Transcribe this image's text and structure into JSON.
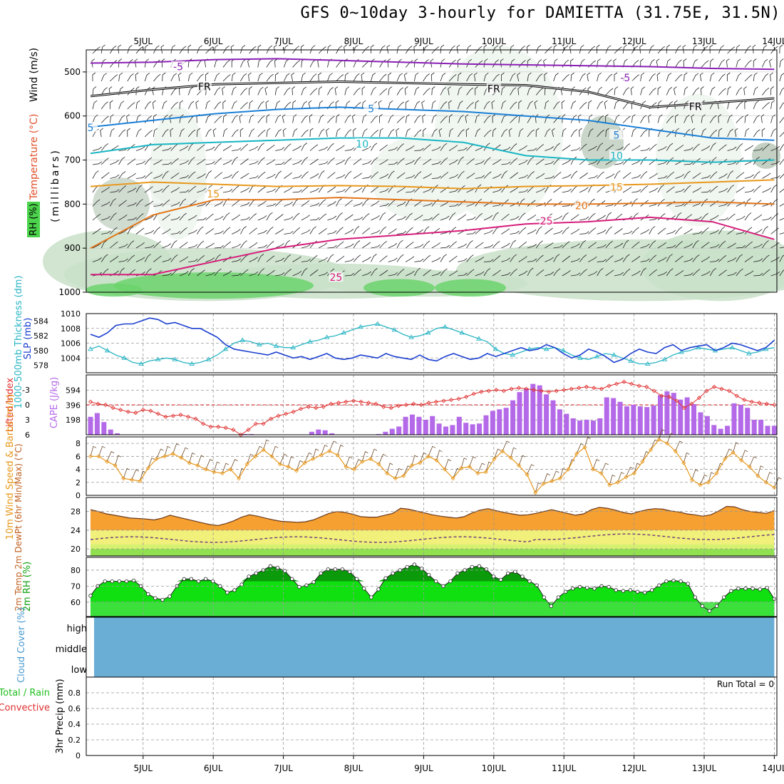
{
  "title": "GFS 0~10day 3-hourly for DAMIETTA (31.75E, 31.5N)",
  "date_labels": [
    "5JUL",
    "6JUL",
    "7JUL",
    "8JUL",
    "9JUL",
    "10JUL",
    "11JUL",
    "12JUL",
    "13JUL",
    "14JUL"
  ],
  "colors": {
    "purple": "#8a1fb5",
    "black": "#000000",
    "blue": "#1a7fd6",
    "cyan": "#18b6c4",
    "orange": "#e8981c",
    "darkorange": "#e2761a",
    "magenta": "#d61c7a",
    "slp": "#1b3fd0",
    "thickness": "#2ab5c4",
    "li": "#e03030",
    "cape": "#b46ae8",
    "wind10": "#e8981c",
    "temp": "#f5a030",
    "dewband": "#f0f07a",
    "rh": "#10e010"
  },
  "chart_data": [
    {
      "type": "contour",
      "name": "upper_air",
      "legend_labels": {
        "wind": "Wind (m/s)",
        "temperature": "Temperature (°C)",
        "rh": "RH (%)"
      },
      "ylabel": "(millibars)",
      "y_ticks": [
        500,
        600,
        700,
        800,
        900,
        1000
      ],
      "ylim": [
        450,
        1000
      ],
      "isotherms": [
        {
          "label": "-5",
          "color_key": "purple",
          "pressure": [
            480,
            478,
            472,
            470,
            474,
            478,
            482,
            484,
            486,
            488,
            492,
            494
          ]
        },
        {
          "label": "FR",
          "color_key": "black",
          "pressure": [
            555,
            540,
            528,
            525,
            522,
            525,
            528,
            530,
            545,
            580,
            570,
            560
          ]
        },
        {
          "label": "5",
          "color_key": "blue",
          "pressure": [
            625,
            610,
            595,
            585,
            580,
            585,
            590,
            600,
            610,
            630,
            650,
            655
          ]
        },
        {
          "label": "10",
          "color_key": "cyan",
          "pressure": [
            685,
            665,
            660,
            655,
            650,
            650,
            660,
            690,
            700,
            700,
            705,
            700
          ]
        },
        {
          "label": "15",
          "color_key": "orange",
          "pressure": [
            760,
            750,
            755,
            760,
            758,
            760,
            765,
            760,
            758,
            755,
            750,
            745
          ]
        },
        {
          "label": "20",
          "color_key": "darkorange",
          "pressure": [
            900,
            825,
            790,
            790,
            785,
            790,
            795,
            800,
            800,
            798,
            795,
            800
          ]
        },
        {
          "label": "25",
          "color_key": "magenta",
          "pressure": [
            960,
            960,
            930,
            900,
            880,
            870,
            860,
            845,
            840,
            830,
            840,
            880
          ]
        }
      ],
      "contour_labels": [
        {
          "text": "-5",
          "x": "5 Jul 12Z",
          "p": 490
        },
        {
          "text": "-5",
          "x": "11 Jul 21Z",
          "p": 515
        },
        {
          "text": "FR",
          "x": "5 Jul 21Z",
          "p": 535
        },
        {
          "text": "FR",
          "x": "10 Jul 00Z",
          "p": 540
        },
        {
          "text": "FR",
          "x": "12 Jul 21Z",
          "p": 580
        },
        {
          "text": "5",
          "x": "4 Jul 06Z",
          "p": 628
        },
        {
          "text": "5",
          "x": "8 Jul 06Z",
          "p": 585
        },
        {
          "text": "5",
          "x": "11 Jul 18Z",
          "p": 645
        },
        {
          "text": "10",
          "x": "8 Jul 03Z",
          "p": 665
        },
        {
          "text": "10",
          "x": "11 Jul 18Z",
          "p": 692
        },
        {
          "text": "15",
          "x": "6 Jul 00Z",
          "p": 778
        },
        {
          "text": "15",
          "x": "11 Jul 18Z",
          "p": 763
        },
        {
          "text": "20",
          "x": "11 Jul 06Z",
          "p": 805
        },
        {
          "text": "25",
          "x": "10 Jul 18Z",
          "p": 840
        },
        {
          "text": "25",
          "x": "7 Jul 18Z",
          "p": 968
        }
      ]
    },
    {
      "type": "line",
      "name": "slp_thickness",
      "left_label": "1000-500mb Thickness (dm)",
      "right_label": "SLP (mb)",
      "left_ticks": [
        578,
        580,
        582,
        584
      ],
      "right_ticks": [
        1004,
        1006,
        1008,
        1010
      ],
      "slp_ylim": [
        1002,
        1010
      ],
      "thick_ylim": [
        577,
        585
      ],
      "series": [
        {
          "name": "SLP",
          "color_key": "slp",
          "values": [
            1007.2,
            1006.8,
            1007.4,
            1008.4,
            1008.6,
            1008.6,
            1009.0,
            1009.4,
            1009.2,
            1008.6,
            1008.8,
            1008.4,
            1008.0,
            1008.0,
            1007.4,
            1006.8,
            1005.8,
            1005.2,
            1005.0,
            1004.8,
            1004.6,
            1004.4,
            1004.8,
            1004.4,
            1004.0,
            1004.2,
            1003.8,
            1004.2,
            1004.6,
            1004.0,
            1003.8,
            1004.0,
            1004.4,
            1004.2,
            1004.0,
            1004.6,
            1004.2,
            1004.0,
            1003.8,
            1004.4,
            1003.8,
            1003.6,
            1004.2,
            1004.6,
            1004.2,
            1003.8,
            1004.0,
            1004.6,
            1004.2,
            1004.6,
            1005.0,
            1005.4,
            1005.0,
            1005.2,
            1005.8,
            1005.4,
            1004.6,
            1004.0,
            1004.4,
            1005.2,
            1004.8,
            1004.2,
            1003.4,
            1003.8,
            1004.6,
            1005.2,
            1004.8,
            1004.6,
            1005.4,
            1005.8,
            1005.0,
            1005.4,
            1005.6,
            1005.8,
            1005.0,
            1005.4,
            1006.0,
            1005.8,
            1005.4,
            1005.0,
            1005.4,
            1006.4
          ]
        },
        {
          "name": "Thickness",
          "color_key": "thickness",
          "values": [
            580.2,
            580.6,
            580.0,
            579.4,
            579.0,
            578.4,
            578.2,
            578.6,
            578.8,
            579.0,
            578.8,
            578.4,
            578.2,
            578.4,
            578.8,
            579.4,
            580.2,
            581.0,
            581.4,
            581.2,
            580.8,
            581.0,
            580.6,
            580.4,
            580.4,
            580.8,
            581.2,
            581.4,
            581.8,
            582.0,
            582.4,
            582.8,
            583.2,
            583.4,
            583.6,
            583.2,
            582.8,
            582.2,
            581.8,
            582.0,
            582.4,
            583.0,
            583.2,
            582.8,
            582.4,
            582.0,
            581.6,
            581.2,
            580.2,
            579.6,
            579.4,
            579.8,
            580.2,
            580.4,
            580.2,
            580.4,
            580.0,
            579.4,
            579.0,
            578.8,
            579.2,
            579.6,
            579.4,
            579.0,
            578.6,
            578.2,
            578.2,
            578.4,
            578.8,
            579.4,
            579.8,
            580.0,
            580.4,
            580.2,
            580.0,
            580.2,
            580.4,
            580.0,
            579.6,
            579.8,
            580.2,
            580.4
          ]
        }
      ]
    },
    {
      "type": "bar",
      "name": "li_cape",
      "left_label": "Lifted Index",
      "right_label": "CAPE (J/kg)",
      "li_ticks": [
        "-3",
        "0",
        "3",
        "6"
      ],
      "cape_ticks": [
        "594",
        "396",
        "198"
      ],
      "li_ylim": [
        -6,
        6
      ],
      "cape_ylim": [
        0,
        800
      ],
      "lifted_index": [
        -0.6,
        -0.2,
        0.0,
        0.6,
        1.0,
        1.4,
        1.6,
        1.0,
        1.2,
        1.8,
        2.4,
        2.2,
        2.0,
        2.4,
        2.8,
        3.8,
        4.4,
        4.4,
        4.6,
        5.0,
        6.0,
        5.0,
        3.8,
        3.8,
        2.8,
        2.2,
        1.8,
        1.4,
        0.8,
        0.4,
        0.6,
        0.4,
        -0.2,
        -0.4,
        -0.6,
        -0.8,
        -0.6,
        -0.4,
        -0.2,
        0.4,
        0.6,
        0.2,
        0.0,
        -0.2,
        0.0,
        -0.4,
        -0.6,
        -0.8,
        -1.0,
        -1.2,
        -1.6,
        -2.2,
        -2.6,
        -2.8,
        -3.0,
        -2.8,
        -3.2,
        -3.4,
        -3.2,
        -3.0,
        -2.8,
        -2.6,
        -2.8,
        -3.0,
        -3.2,
        -3.4,
        -3.6,
        -3.4,
        -3.2,
        -3.8,
        -4.2,
        -4.6,
        -4.2,
        -3.8,
        -3.6,
        -2.8,
        -1.8,
        -1.6,
        -0.8,
        0.6,
        -0.2,
        -1.4,
        -2.8,
        -3.6,
        -3.2,
        -2.8,
        -1.8,
        -1.0,
        -0.6,
        -0.4,
        -0.2,
        0.0
      ],
      "cape": [
        240,
        290,
        170,
        70,
        20,
        0,
        0,
        0,
        0,
        0,
        0,
        0,
        0,
        0,
        0,
        0,
        0,
        0,
        0,
        0,
        0,
        0,
        0,
        10,
        10,
        0,
        0,
        0,
        0,
        0,
        0,
        0,
        0,
        40,
        70,
        60,
        20,
        0,
        0,
        0,
        0,
        0,
        0,
        10,
        40,
        80,
        110,
        240,
        270,
        240,
        200,
        250,
        150,
        110,
        130,
        240,
        160,
        140,
        150,
        260,
        320,
        340,
        360,
        460,
        570,
        620,
        680,
        660,
        540,
        460,
        340,
        280,
        220,
        190,
        200,
        190,
        220,
        500,
        490,
        440,
        380,
        400,
        380,
        370,
        390,
        530,
        580,
        560,
        470,
        500,
        410,
        300,
        250,
        130,
        80,
        120,
        420,
        400,
        360,
        200,
        200,
        120,
        120
      ]
    },
    {
      "type": "line",
      "name": "wind10m",
      "left_label": "10m Wind Speed & Barbs (m/s)",
      "y_ticks": [
        0,
        2,
        4,
        6,
        8
      ],
      "ylim": [
        0,
        9
      ],
      "speed": [
        6.0,
        6.0,
        5.2,
        4.6,
        2.6,
        2.4,
        2.2,
        4.2,
        5.6,
        6.0,
        6.4,
        5.8,
        5.0,
        4.6,
        4.0,
        3.6,
        3.4,
        4.0,
        2.6,
        4.8,
        6.0,
        7.0,
        6.0,
        4.8,
        4.4,
        3.8,
        5.0,
        5.6,
        6.2,
        6.8,
        6.2,
        4.4,
        4.0,
        5.2,
        5.6,
        4.8,
        3.4,
        2.6,
        3.0,
        4.6,
        5.0,
        6.0,
        5.4,
        4.0,
        2.6,
        4.2,
        4.4,
        3.4,
        3.6,
        5.6,
        6.8,
        5.8,
        4.6,
        3.2,
        0.4,
        1.8,
        2.2,
        2.6,
        4.0,
        6.4,
        7.4,
        4.0,
        3.4,
        1.6,
        2.0,
        2.8,
        3.4,
        5.2,
        7.0,
        8.6,
        8.0,
        6.8,
        5.0,
        2.4,
        1.6,
        2.0,
        3.4,
        5.6,
        6.6,
        5.4,
        4.4,
        3.0,
        2.0,
        1.2
      ]
    },
    {
      "type": "area",
      "name": "temp2m",
      "left_label": "2m Temp 2m DewPt (6hr Min/Max) (°C)",
      "y_ticks": [
        20,
        24,
        28
      ],
      "ylim": [
        18.5,
        31
      ],
      "temp": [
        28.4,
        28.0,
        27.5,
        27.2,
        26.9,
        26.6,
        26.5,
        26.4,
        26.2,
        26.6,
        27.2,
        26.8,
        26.4,
        26.0,
        25.6,
        25.2,
        25.0,
        25.4,
        26.0,
        26.8,
        27.3,
        27.0,
        26.6,
        26.2,
        25.9,
        25.8,
        25.7,
        25.8,
        26.2,
        26.9,
        27.6,
        28.0,
        27.8,
        27.4,
        26.9,
        26.8,
        26.8,
        27.2,
        27.6,
        28.7,
        28.5,
        28.1,
        27.7,
        27.3,
        27.0,
        26.8,
        26.6,
        26.9,
        27.7,
        28.3,
        28.6,
        28.2,
        27.8,
        27.5,
        27.2,
        27.3,
        27.6,
        28.0,
        28.4,
        28.0,
        27.6,
        27.2,
        27.5,
        28.4,
        28.9,
        28.7,
        28.3,
        27.8,
        27.5,
        28.0,
        28.4,
        28.6,
        28.5,
        28.1,
        27.9,
        27.5,
        27.3,
        27.0,
        27.3,
        28.1,
        29.1,
        29.0,
        28.4,
        28.0,
        27.8,
        27.6,
        28.2
      ]
    },
    {
      "type": "area",
      "name": "rh2m",
      "left_label": "2m RH (%)",
      "y_ticks": [
        60,
        70,
        80
      ],
      "ylim": [
        51,
        88
      ],
      "values": [
        64.0,
        70.0,
        73.0,
        73.0,
        73.0,
        73.0,
        73.5,
        70.0,
        65.0,
        62.5,
        61.5,
        63.5,
        70.0,
        74.5,
        74.5,
        73.0,
        74.5,
        73.0,
        70.0,
        66.0,
        67.5,
        71.0,
        76.0,
        78.0,
        80.0,
        82.5,
        81.5,
        79.5,
        74.5,
        69.5,
        70.5,
        72.5,
        78.0,
        80.5,
        80.5,
        80.5,
        79.0,
        74.5,
        68.5,
        63.0,
        68.0,
        75.0,
        78.0,
        80.0,
        82.0,
        83.5,
        81.0,
        77.0,
        73.0,
        70.0,
        73.0,
        78.0,
        80.0,
        82.0,
        82.5,
        80.5,
        76.0,
        74.0,
        78.0,
        79.0,
        76.0,
        73.0,
        70.5,
        63.0,
        57.5,
        63.0,
        66.5,
        68.5,
        69.5,
        69.0,
        68.5,
        70.0,
        69.5,
        67.5,
        67.0,
        67.5,
        66.5,
        66.0,
        67.5,
        70.5,
        73.0,
        73.5,
        73.0,
        71.5,
        63.0,
        57.5,
        54.5,
        57.5,
        63.0,
        67.0,
        68.5,
        68.5,
        68.5,
        68.0,
        69.0,
        62.0
      ]
    },
    {
      "type": "heatmap",
      "name": "cloud_cover",
      "left_label": "Cloud Cover (%)",
      "rows": [
        "high",
        "middle",
        "low"
      ],
      "values_percent": [
        0,
        0,
        0
      ]
    },
    {
      "type": "bar",
      "name": "precip3h",
      "left_label": "3hr Precip (mm)",
      "legend_total": "Total / Rain",
      "legend_convective": "Convective",
      "y_ticks": [
        "0",
        "0.2",
        "0.4",
        "0.6",
        "0.8"
      ],
      "ylim": [
        0,
        1
      ],
      "run_total": "Run Total = 0",
      "values": []
    }
  ]
}
